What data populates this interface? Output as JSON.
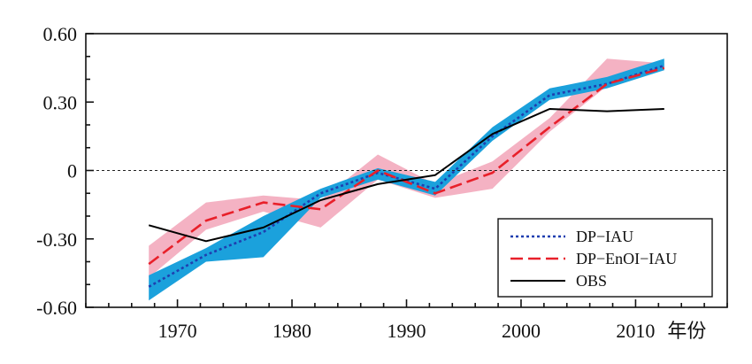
{
  "chart_data": {
    "type": "line",
    "x_tick_labels": [
      "1970",
      "1980",
      "1990",
      "2000",
      "2010"
    ],
    "x_ticks": [
      1970,
      1980,
      1990,
      2000,
      2010
    ],
    "xlabel": "年份",
    "y_tick_labels": [
      "0.60",
      "0.30",
      "0",
      "-0.30",
      "-0.60"
    ],
    "y_ticks": [
      0.6,
      0.3,
      0,
      -0.3,
      -0.6
    ],
    "xlim": [
      1962,
      2018
    ],
    "ylim": [
      -0.6,
      0.6
    ],
    "x": [
      1967.5,
      1972.5,
      1977.5,
      1982.5,
      1987.5,
      1992.5,
      1997.5,
      2002.5,
      2007.5,
      2012.5
    ],
    "zero_line": true,
    "legend_position": "bottom-right",
    "series": [
      {
        "name": "DP−IAU",
        "color": "#1f3fb0",
        "style": "dotted",
        "values": [
          -0.51,
          -0.37,
          -0.27,
          -0.1,
          -0.01,
          -0.08,
          0.15,
          0.33,
          0.38,
          0.46
        ]
      },
      {
        "name": "DP−EnOI−IAU",
        "color": "#e8202a",
        "style": "dashed",
        "values": [
          -0.41,
          -0.22,
          -0.14,
          -0.17,
          0.0,
          -0.1,
          -0.01,
          0.19,
          0.38,
          0.45
        ]
      },
      {
        "name": "OBS",
        "color": "#000000",
        "style": "solid",
        "values": [
          -0.24,
          -0.31,
          -0.25,
          -0.13,
          -0.06,
          -0.02,
          0.16,
          0.27,
          0.26,
          0.27
        ]
      }
    ],
    "bands": [
      {
        "series": "DP−IAU",
        "color": "#1ba1dc",
        "upper": [
          -0.46,
          -0.34,
          -0.2,
          -0.08,
          0.01,
          -0.05,
          0.19,
          0.36,
          0.41,
          0.49
        ],
        "lower": [
          -0.57,
          -0.4,
          -0.38,
          -0.12,
          -0.04,
          -0.11,
          0.13,
          0.31,
          0.36,
          0.44
        ]
      },
      {
        "series": "DP−EnOI−IAU",
        "color": "#f2a4b8",
        "upper": [
          -0.33,
          -0.14,
          -0.11,
          -0.13,
          0.07,
          -0.06,
          0.04,
          0.23,
          0.49,
          0.47
        ],
        "lower": [
          -0.47,
          -0.26,
          -0.18,
          -0.25,
          -0.04,
          -0.12,
          -0.08,
          0.17,
          0.37,
          0.44
        ]
      }
    ]
  }
}
